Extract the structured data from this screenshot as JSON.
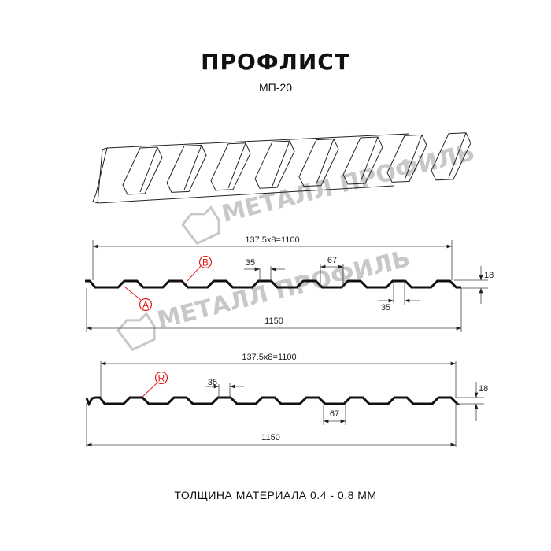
{
  "header": {
    "title": "ПРОФЛИСТ",
    "model": "МП-20"
  },
  "watermark": {
    "text": "МЕТАЛЛ ПРОФИЛЬ"
  },
  "profile_top": {
    "pitch_label": "137,5x8=1100",
    "width_label": "1150",
    "rib_top_label": "35",
    "rib_bottom_label": "35",
    "gap_label": "67",
    "height_label": "18",
    "marker_a": "A",
    "marker_b": "B"
  },
  "profile_bottom": {
    "pitch_label": "137.5x8=1100",
    "width_label": "1150",
    "rib_top_label": "35",
    "gap_label": "67",
    "height_label": "18",
    "marker_r": "R"
  },
  "footer": {
    "thickness": "ТОЛЩИНА МАТЕРИАЛА 0.4 - 0.8 ММ"
  },
  "colors": {
    "line": "#111111",
    "marker": "#e0201c",
    "watermark": "#c8c8c8"
  }
}
